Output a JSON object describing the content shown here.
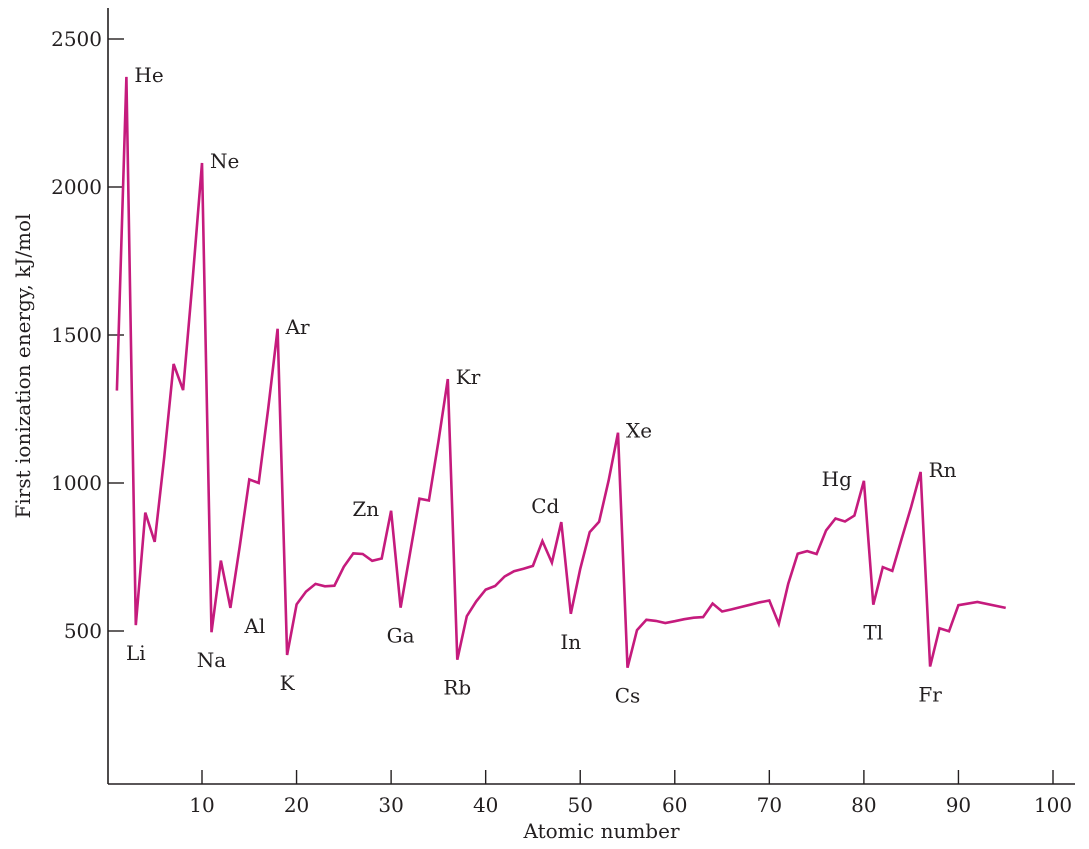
{
  "chart_data": {
    "type": "line",
    "title": "",
    "xlabel": "Atomic number",
    "ylabel": "First ionization energy, kJ/mol",
    "xlim": [
      0,
      100
    ],
    "ylim": [
      0,
      2550
    ],
    "x_ticks": [
      10,
      20,
      30,
      40,
      50,
      60,
      70,
      80,
      90,
      100
    ],
    "y_ticks": [
      500,
      1000,
      1500,
      2000,
      2500
    ],
    "grid": false,
    "legend": "none",
    "line_color": "#c51b7d",
    "series": [
      {
        "values": [
          [
            1,
            1312
          ],
          [
            2,
            2372
          ],
          [
            3,
            520
          ],
          [
            4,
            900
          ],
          [
            5,
            801
          ],
          [
            6,
            1086
          ],
          [
            7,
            1402
          ],
          [
            8,
            1314
          ],
          [
            9,
            1681
          ],
          [
            10,
            2081
          ],
          [
            11,
            496
          ],
          [
            12,
            738
          ],
          [
            13,
            578
          ],
          [
            14,
            787
          ],
          [
            15,
            1012
          ],
          [
            16,
            1000
          ],
          [
            17,
            1251
          ],
          [
            18,
            1521
          ],
          [
            19,
            419
          ],
          [
            20,
            590
          ],
          [
            21,
            633
          ],
          [
            22,
            659
          ],
          [
            23,
            651
          ],
          [
            24,
            653
          ],
          [
            25,
            717
          ],
          [
            26,
            762
          ],
          [
            27,
            760
          ],
          [
            28,
            737
          ],
          [
            29,
            745
          ],
          [
            30,
            906
          ],
          [
            31,
            579
          ],
          [
            32,
            762
          ],
          [
            33,
            947
          ],
          [
            34,
            941
          ],
          [
            35,
            1140
          ],
          [
            36,
            1351
          ],
          [
            37,
            403
          ],
          [
            38,
            550
          ],
          [
            39,
            600
          ],
          [
            40,
            640
          ],
          [
            41,
            652
          ],
          [
            42,
            684
          ],
          [
            43,
            702
          ],
          [
            44,
            710
          ],
          [
            45,
            720
          ],
          [
            46,
            804
          ],
          [
            47,
            731
          ],
          [
            48,
            868
          ],
          [
            49,
            558
          ],
          [
            50,
            709
          ],
          [
            51,
            834
          ],
          [
            52,
            869
          ],
          [
            53,
            1008
          ],
          [
            54,
            1170
          ],
          [
            55,
            376
          ],
          [
            56,
            503
          ],
          [
            57,
            538
          ],
          [
            58,
            534
          ],
          [
            59,
            527
          ],
          [
            60,
            533
          ],
          [
            61,
            540
          ],
          [
            62,
            545
          ],
          [
            63,
            547
          ],
          [
            64,
            593
          ],
          [
            65,
            566
          ],
          [
            66,
            573
          ],
          [
            67,
            581
          ],
          [
            68,
            589
          ],
          [
            69,
            597
          ],
          [
            70,
            603
          ],
          [
            71,
            524
          ],
          [
            72,
            659
          ],
          [
            73,
            761
          ],
          [
            74,
            770
          ],
          [
            75,
            760
          ],
          [
            76,
            840
          ],
          [
            77,
            880
          ],
          [
            78,
            870
          ],
          [
            79,
            890
          ],
          [
            80,
            1007
          ],
          [
            81,
            589
          ],
          [
            82,
            716
          ],
          [
            83,
            703
          ],
          [
            84,
            812
          ],
          [
            85,
            920
          ],
          [
            86,
            1037
          ],
          [
            87,
            380
          ],
          [
            88,
            509
          ],
          [
            89,
            499
          ],
          [
            90,
            587
          ],
          [
            92,
            598
          ],
          [
            95,
            578
          ]
        ]
      }
    ],
    "annotations": [
      {
        "text": "He",
        "x": 2,
        "y": 2372,
        "pos": "right"
      },
      {
        "text": "Li",
        "x": 3,
        "y": 520,
        "pos": "below"
      },
      {
        "text": "Ne",
        "x": 10,
        "y": 2081,
        "pos": "right"
      },
      {
        "text": "Na",
        "x": 11,
        "y": 496,
        "pos": "below"
      },
      {
        "text": "Al",
        "x": 13,
        "y": 578,
        "pos": "below-right"
      },
      {
        "text": "Ar",
        "x": 18,
        "y": 1521,
        "pos": "right"
      },
      {
        "text": "K",
        "x": 19,
        "y": 419,
        "pos": "below"
      },
      {
        "text": "Zn",
        "x": 30,
        "y": 906,
        "pos": "left"
      },
      {
        "text": "Ga",
        "x": 31,
        "y": 579,
        "pos": "below"
      },
      {
        "text": "Kr",
        "x": 36,
        "y": 1351,
        "pos": "right"
      },
      {
        "text": "Rb",
        "x": 37,
        "y": 403,
        "pos": "below"
      },
      {
        "text": "Cd",
        "x": 48,
        "y": 868,
        "pos": "above-left"
      },
      {
        "text": "In",
        "x": 49,
        "y": 558,
        "pos": "below"
      },
      {
        "text": "Xe",
        "x": 54,
        "y": 1170,
        "pos": "right"
      },
      {
        "text": "Cs",
        "x": 55,
        "y": 376,
        "pos": "below"
      },
      {
        "text": "Hg",
        "x": 80,
        "y": 1007,
        "pos": "left"
      },
      {
        "text": "Tl",
        "x": 81,
        "y": 589,
        "pos": "below"
      },
      {
        "text": "Rn",
        "x": 86,
        "y": 1037,
        "pos": "right"
      },
      {
        "text": "Fr",
        "x": 87,
        "y": 380,
        "pos": "below"
      }
    ]
  }
}
